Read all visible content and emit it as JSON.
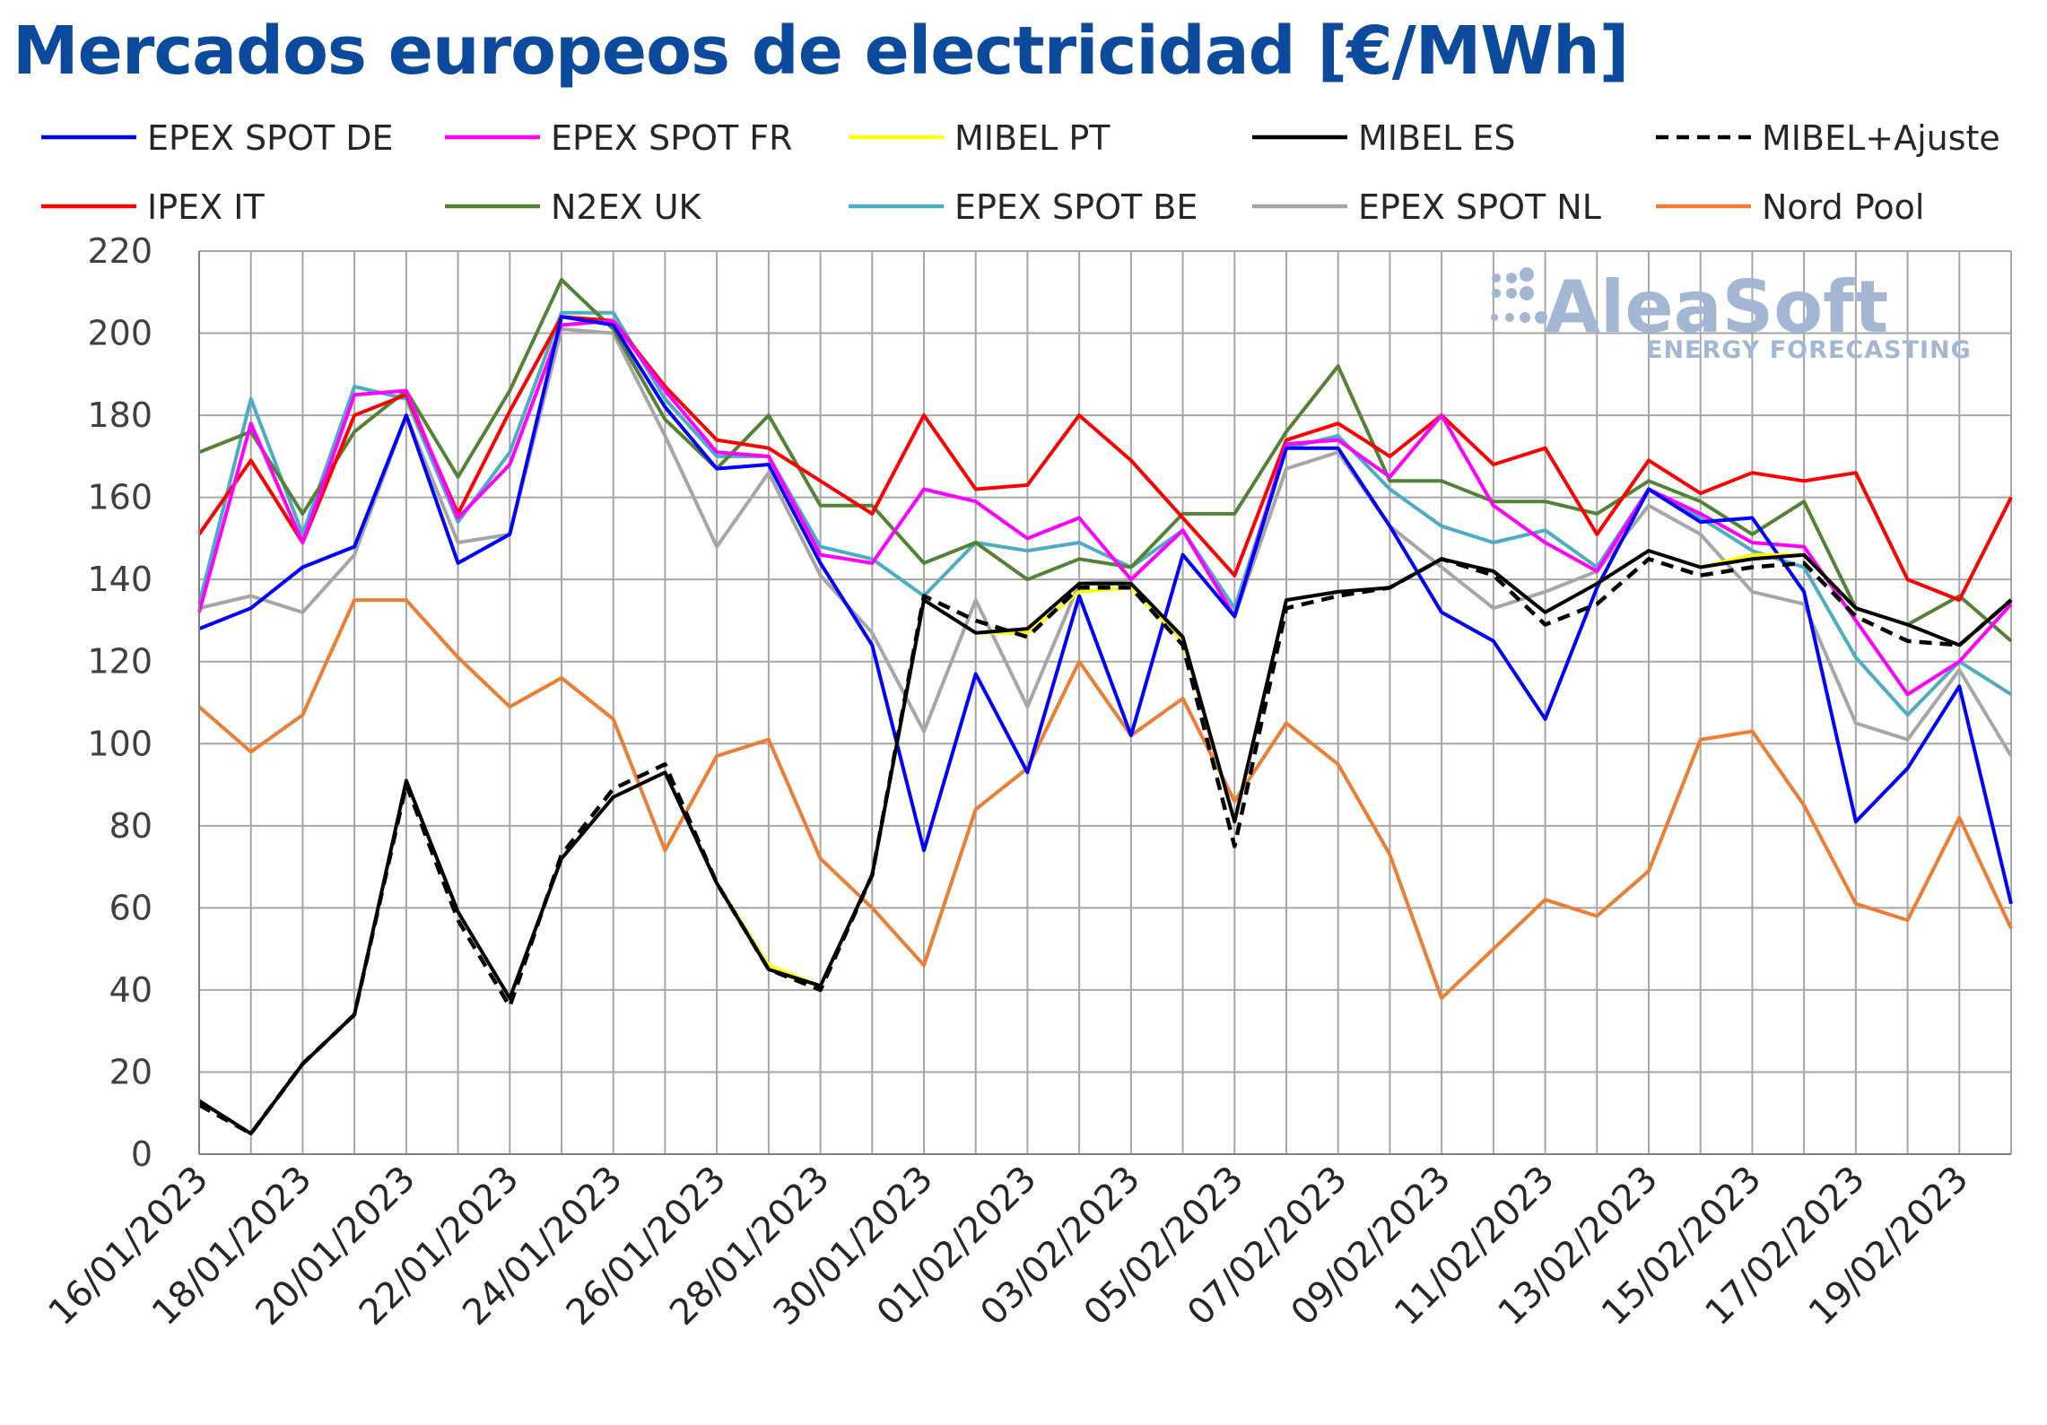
{
  "chart_data": {
    "type": "line",
    "title": "Mercados europeos de electricidad [€/MWh]",
    "ylim": [
      0,
      220
    ],
    "yticks": [
      0,
      20,
      40,
      60,
      80,
      100,
      120,
      140,
      160,
      180,
      200,
      220
    ],
    "grid": true,
    "legend_position": "top",
    "x": [
      "16/01/2023",
      "17/01/2023",
      "18/01/2023",
      "19/01/2023",
      "20/01/2023",
      "21/01/2023",
      "22/01/2023",
      "23/01/2023",
      "24/01/2023",
      "25/01/2023",
      "26/01/2023",
      "27/01/2023",
      "28/01/2023",
      "29/01/2023",
      "30/01/2023",
      "31/01/2023",
      "01/02/2023",
      "02/02/2023",
      "03/02/2023",
      "04/02/2023",
      "05/02/2023",
      "06/02/2023",
      "07/02/2023",
      "08/02/2023",
      "09/02/2023",
      "10/02/2023",
      "11/02/2023",
      "12/02/2023",
      "13/02/2023",
      "14/02/2023",
      "15/02/2023",
      "16/02/2023",
      "17/02/2023",
      "18/02/2023",
      "19/02/2023",
      "20/02/2023"
    ],
    "xtick_labels": [
      "16/01/2023",
      "18/01/2023",
      "20/01/2023",
      "22/01/2023",
      "24/01/2023",
      "26/01/2023",
      "28/01/2023",
      "30/01/2023",
      "01/02/2023",
      "03/02/2023",
      "05/02/2023",
      "07/02/2023",
      "09/02/2023",
      "11/02/2023",
      "13/02/2023",
      "15/02/2023",
      "17/02/2023",
      "19/02/2023"
    ],
    "series": [
      {
        "name": "EPEX SPOT DE",
        "color": "#0000ff",
        "dash": false,
        "values": [
          128,
          133,
          143,
          148,
          180,
          144,
          151,
          204,
          202,
          182,
          167,
          168,
          144,
          124,
          74,
          117,
          93,
          136,
          102,
          146,
          131,
          172,
          172,
          153,
          132,
          125,
          106,
          138,
          162,
          154,
          155,
          137,
          81,
          94,
          114,
          61
        ]
      },
      {
        "name": "EPEX SPOT FR",
        "color": "#ff00ff",
        "dash": false,
        "values": [
          132,
          178,
          149,
          185,
          186,
          155,
          168,
          202,
          203,
          186,
          171,
          170,
          146,
          144,
          162,
          159,
          150,
          155,
          140,
          152,
          131,
          173,
          174,
          165,
          180,
          158,
          149,
          142,
          162,
          156,
          149,
          148,
          130,
          112,
          120,
          134
        ]
      },
      {
        "name": "MIBEL PT",
        "color": "#ffff00",
        "dash": false,
        "values": [
          13,
          5,
          22,
          34,
          91,
          59,
          38,
          72,
          87,
          93,
          66,
          46,
          41,
          68,
          135,
          127,
          127,
          137,
          138,
          125,
          81,
          135,
          137,
          138,
          145,
          142,
          132,
          139,
          147,
          143,
          146,
          146,
          133,
          129,
          124,
          135
        ]
      },
      {
        "name": "MIBEL ES",
        "color": "#000000",
        "dash": false,
        "values": [
          13,
          5,
          22,
          34,
          91,
          59,
          38,
          72,
          87,
          93,
          66,
          45,
          41,
          68,
          135,
          127,
          128,
          139,
          139,
          126,
          81,
          135,
          137,
          138,
          145,
          142,
          132,
          139,
          147,
          143,
          145,
          146,
          133,
          129,
          124,
          135
        ]
      },
      {
        "name": "MIBEL+Ajuste",
        "color": "#000000",
        "dash": true,
        "values": [
          12,
          5,
          22,
          34,
          90,
          57,
          36,
          73,
          89,
          95,
          66,
          45,
          40,
          68,
          136,
          130,
          126,
          138,
          138,
          124,
          75,
          133,
          136,
          138,
          145,
          141,
          129,
          134,
          145,
          141,
          143,
          144,
          131,
          125,
          124,
          135
        ]
      },
      {
        "name": "IPEX IT",
        "color": "#ff0000",
        "dash": false,
        "values": [
          151,
          169,
          149,
          180,
          185,
          156,
          181,
          204,
          203,
          187,
          174,
          172,
          164,
          156,
          180,
          162,
          163,
          180,
          169,
          155,
          141,
          174,
          178,
          170,
          180,
          168,
          172,
          151,
          169,
          161,
          166,
          164,
          166,
          140,
          135,
          160
        ]
      },
      {
        "name": "N2EX UK",
        "color": "#548235",
        "dash": false,
        "values": [
          171,
          176,
          156,
          176,
          186,
          165,
          186,
          213,
          201,
          179,
          167,
          180,
          158,
          158,
          144,
          149,
          140,
          145,
          143,
          156,
          156,
          176,
          192,
          164,
          164,
          159,
          159,
          156,
          164,
          159,
          151,
          159,
          133,
          129,
          136,
          125
        ]
      },
      {
        "name": "EPEX SPOT BE",
        "color": "#4bacc6",
        "dash": false,
        "values": [
          134,
          184,
          151,
          187,
          184,
          154,
          171,
          205,
          205,
          184,
          170,
          170,
          148,
          145,
          136,
          149,
          147,
          149,
          143,
          152,
          133,
          172,
          175,
          162,
          153,
          149,
          152,
          143,
          162,
          155,
          147,
          143,
          121,
          107,
          120,
          112
        ]
      },
      {
        "name": "EPEX SPOT NL",
        "color": "#a6a6a6",
        "dash": false,
        "values": [
          133,
          136,
          132,
          146,
          180,
          149,
          151,
          201,
          200,
          175,
          148,
          166,
          141,
          127,
          103,
          135,
          109,
          139,
          140,
          152,
          131,
          167,
          171,
          153,
          143,
          133,
          137,
          142,
          158,
          151,
          137,
          134,
          105,
          101,
          118,
          97
        ]
      },
      {
        "name": "Nord Pool",
        "color": "#ed7d31",
        "dash": false,
        "values": [
          109,
          98,
          107,
          135,
          135,
          121,
          109,
          116,
          106,
          74,
          97,
          101,
          72,
          60,
          46,
          84,
          94,
          120,
          102,
          111,
          86,
          105,
          95,
          73,
          38,
          50,
          62,
          58,
          69,
          101,
          103,
          85,
          61,
          57,
          82,
          55
        ]
      }
    ]
  },
  "watermark": {
    "brand": "AleaSoft",
    "tagline": "ENERGY FORECASTING"
  }
}
